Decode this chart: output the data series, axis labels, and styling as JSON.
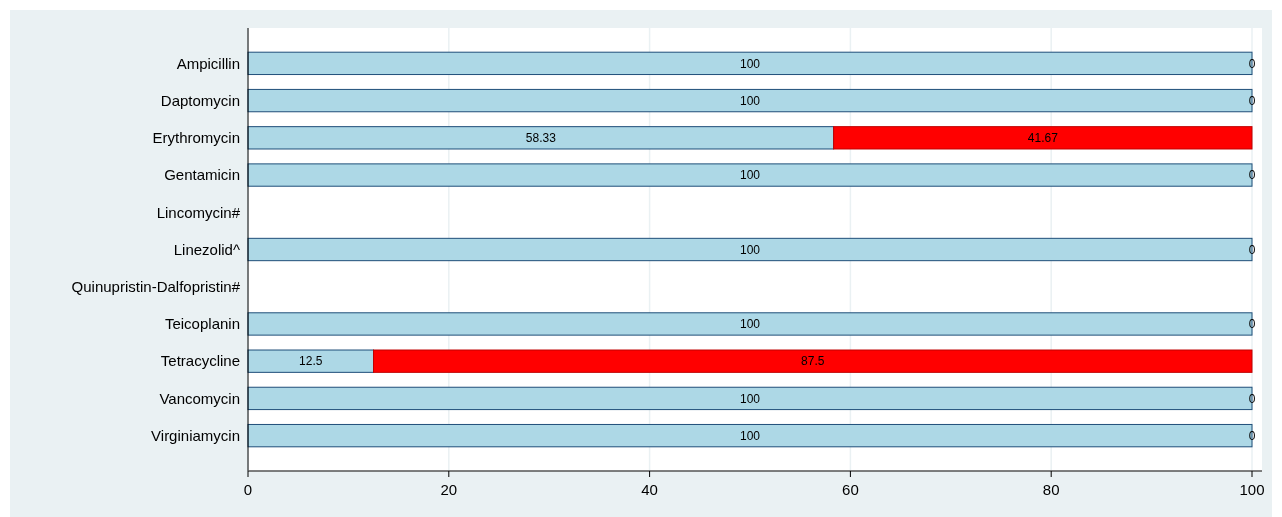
{
  "chart_data": {
    "type": "bar",
    "orientation": "horizontal",
    "stacked": true,
    "categories": [
      "Ampicillin",
      "Daptomycin",
      "Erythromycin",
      "Gentamicin",
      "Lincomycin#",
      "Linezolid^",
      "Quinupristin-Dalfopristin#",
      "Teicoplanin",
      "Tetracycline",
      "Vancomycin",
      "Virginiamycin"
    ],
    "series": [
      {
        "color": "#add8e6",
        "values": [
          100,
          100,
          58.33,
          100,
          null,
          100,
          null,
          100,
          12.5,
          100,
          100
        ]
      },
      {
        "color": "#ff0000",
        "values": [
          0,
          0,
          41.67,
          0,
          null,
          0,
          null,
          0,
          87.5,
          0,
          0
        ]
      }
    ],
    "xlim": [
      0,
      100
    ],
    "xticks": [
      0,
      20,
      40,
      60,
      80,
      100
    ],
    "grid": "x",
    "data_labels": true
  }
}
